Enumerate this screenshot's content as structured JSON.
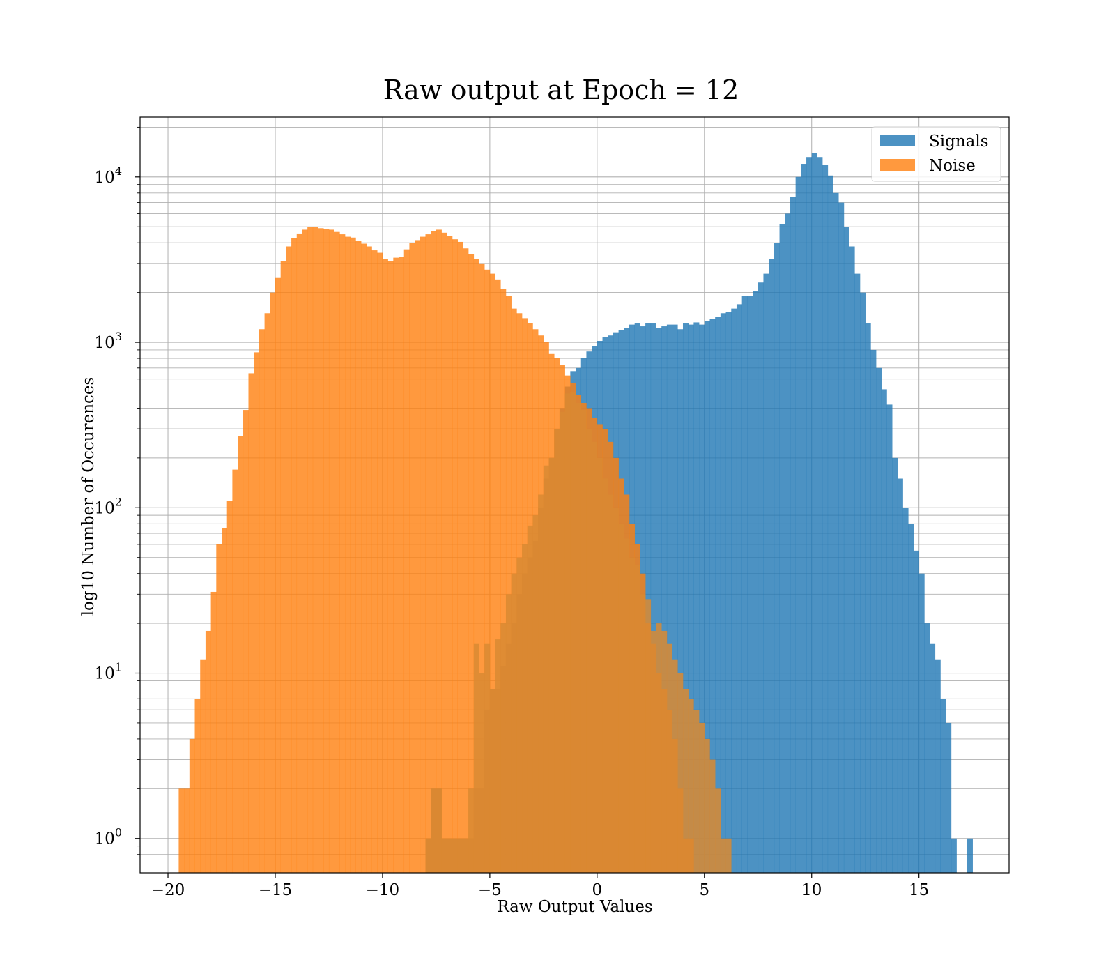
{
  "chart_data": {
    "type": "histogram",
    "title": "Raw output at Epoch = 12",
    "xlabel": "Raw Output Values",
    "ylabel": "log10 Number of Occurences",
    "xlim": [
      -21.3,
      19.2
    ],
    "ylim": [
      0.62,
      23000
    ],
    "yscale": "log",
    "grid": true,
    "grid_minor_y": true,
    "legend_position": "top-right",
    "x_ticks": [
      {
        "value": -20,
        "label": "−20"
      },
      {
        "value": -15,
        "label": "−15"
      },
      {
        "value": -10,
        "label": "−10"
      },
      {
        "value": -5,
        "label": "−5"
      },
      {
        "value": 0,
        "label": "0"
      },
      {
        "value": 5,
        "label": "5"
      },
      {
        "value": 10,
        "label": "10"
      },
      {
        "value": 15,
        "label": "15"
      }
    ],
    "y_ticks": [
      {
        "value": 1,
        "base": "10",
        "exp": "0"
      },
      {
        "value": 10,
        "base": "10",
        "exp": "1"
      },
      {
        "value": 100,
        "base": "10",
        "exp": "2"
      },
      {
        "value": 1000,
        "base": "10",
        "exp": "3"
      },
      {
        "value": 10000,
        "base": "10",
        "exp": "4"
      }
    ],
    "series": [
      {
        "name": "Signals",
        "color": "#1f77b4",
        "opacity": 0.8,
        "bin_start": -8.0,
        "bin_width": 0.25,
        "counts": [
          1,
          2,
          2,
          1,
          1,
          1,
          1,
          1,
          1,
          2,
          2,
          6,
          8,
          8,
          11,
          15,
          20,
          30,
          40,
          50,
          63,
          100,
          150,
          200,
          300,
          400,
          540,
          670,
          700,
          800,
          880,
          950,
          1020,
          1080,
          1100,
          1150,
          1180,
          1220,
          1280,
          1300,
          1250,
          1300,
          1300,
          1220,
          1250,
          1280,
          1280,
          1200,
          1300,
          1280,
          1320,
          1280,
          1350,
          1380,
          1430,
          1500,
          1530,
          1600,
          1700,
          1900,
          1900,
          2050,
          2300,
          2600,
          3200,
          4000,
          5200,
          6000,
          7600,
          10000,
          12000,
          13200,
          14000,
          13200,
          11800,
          10200,
          8000,
          7000,
          5000,
          3800,
          2600,
          2000,
          1300,
          900,
          700,
          520,
          420,
          200,
          150,
          100,
          80,
          55,
          40,
          20,
          15,
          12,
          7,
          5,
          1,
          0,
          0,
          1
        ],
        "name_series_visible": true
      },
      {
        "name": "Noise",
        "color": "#ff7f0e",
        "opacity": 0.8,
        "bin_start": -19.5,
        "bin_width": 0.25,
        "counts": [
          2,
          2,
          4,
          7,
          12,
          18,
          31,
          60,
          75,
          110,
          170,
          270,
          390,
          650,
          870,
          1200,
          1500,
          2000,
          2450,
          3100,
          3800,
          4250,
          4550,
          4800,
          5000,
          5000,
          4900,
          4850,
          4800,
          4650,
          4500,
          4350,
          4300,
          4100,
          3950,
          3800,
          3600,
          3480,
          3200,
          3100,
          3250,
          3300,
          3650,
          4000,
          4150,
          4350,
          4500,
          4700,
          4800,
          4600,
          4400,
          4200,
          4050,
          3700,
          3400,
          3200,
          3000,
          2750,
          2600,
          2400,
          2100,
          1900,
          1600,
          1500,
          1400,
          1300,
          1200,
          1100,
          1000,
          850,
          800,
          730,
          630,
          570,
          480,
          430,
          400,
          350,
          320,
          300,
          250,
          200,
          150,
          120,
          80,
          60,
          40,
          20,
          15,
          10,
          8,
          6,
          4,
          2,
          1,
          1
        ]
      },
      {
        "name": "",
        "color": "#d98a32",
        "opacity": 0.85,
        "bin_start": -8.0,
        "bin_width": 0.25,
        "counts": [
          1,
          2,
          2,
          1,
          1,
          1,
          1,
          1,
          2,
          15,
          10,
          15,
          8,
          16,
          20,
          30,
          40,
          50,
          60,
          78,
          90,
          120,
          180,
          200,
          300,
          380,
          490,
          500,
          430,
          390,
          300,
          250,
          200,
          150,
          120,
          100,
          80,
          65,
          50,
          45,
          30,
          28,
          18,
          20,
          18,
          15,
          12,
          10,
          8,
          7,
          6,
          5,
          4,
          3,
          2,
          1,
          1
        ]
      }
    ]
  },
  "legend": {
    "items": [
      {
        "label": "Signals",
        "color": "#1f77b4"
      },
      {
        "label": "Noise",
        "color": "#ff7f0e"
      }
    ]
  }
}
